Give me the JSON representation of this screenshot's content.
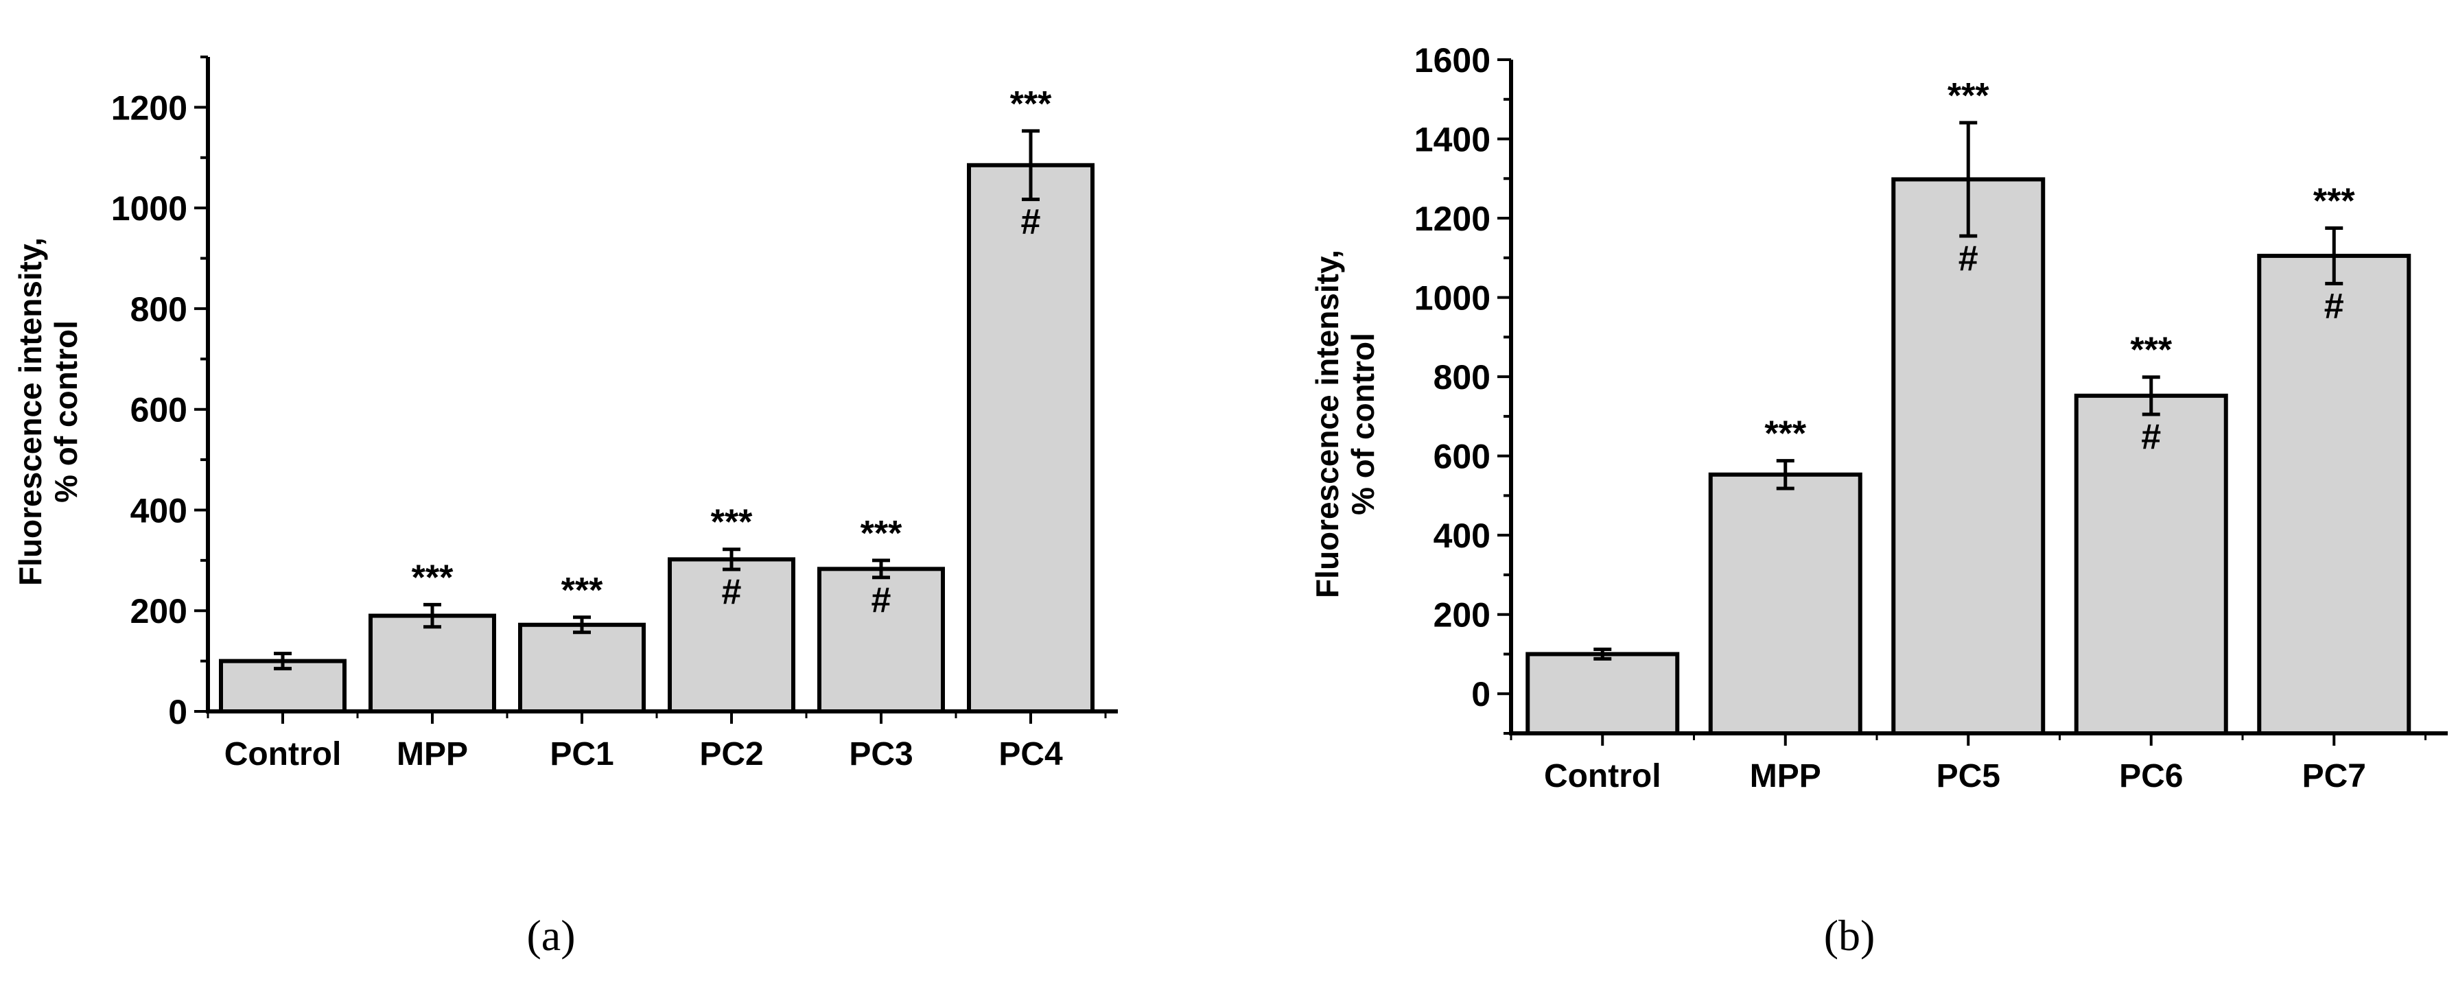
{
  "chart_data": [
    {
      "type": "bar",
      "panel_label": "(a)",
      "ylabel_line1": "Fluorescence intensity,",
      "ylabel_line2": "% of control",
      "xlabel": "",
      "categories": [
        "Control",
        "MPP",
        "PC1",
        "PC2",
        "PC3",
        "PC4"
      ],
      "values": [
        100,
        190,
        172,
        302,
        283,
        1085
      ],
      "errors": [
        15,
        22,
        15,
        20,
        17,
        68
      ],
      "significance_stars": [
        "",
        "***",
        "***",
        "***",
        "***",
        "***"
      ],
      "significance_hash": [
        "",
        "",
        "",
        "#",
        "#",
        "#"
      ],
      "ylim": [
        0,
        1300
      ],
      "yticks": [
        0,
        200,
        400,
        600,
        800,
        1000,
        1200
      ],
      "minor_tick_step": 100,
      "bar_color": "#d3d3d3",
      "grid": false
    },
    {
      "type": "bar",
      "panel_label": "(b)",
      "ylabel_line1": "Fluorescence intensity,",
      "ylabel_line2": "% of control",
      "xlabel": "",
      "categories": [
        "Control",
        "MPP",
        "PC5",
        "PC6",
        "PC7"
      ],
      "values": [
        100,
        553,
        1298,
        752,
        1105
      ],
      "errors": [
        12,
        35,
        143,
        47,
        70
      ],
      "significance_stars": [
        "",
        "***",
        "***",
        "***",
        "***"
      ],
      "significance_hash": [
        "",
        "",
        "#",
        "#",
        "#"
      ],
      "ylim": [
        -100,
        1600
      ],
      "yticks": [
        0,
        200,
        400,
        600,
        800,
        1000,
        1200,
        1400,
        1600
      ],
      "minor_tick_step": 100,
      "bar_color": "#d3d3d3",
      "grid": false
    }
  ]
}
